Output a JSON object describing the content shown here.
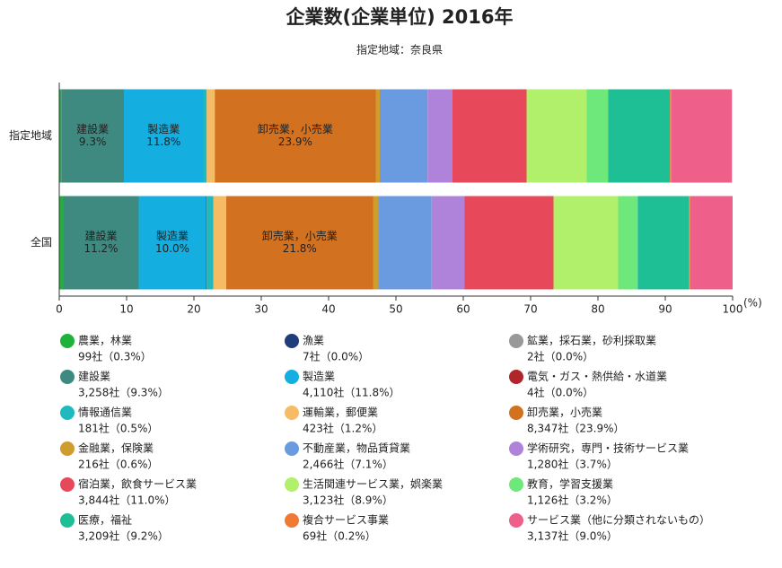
{
  "chart_data": {
    "type": "stacked_bar_horizontal",
    "title": "企業数(企業単位) 2016年",
    "subtitle": "指定地域：奈良県",
    "categories": [
      "指定地域",
      "全国"
    ],
    "xlim": [
      0,
      100
    ],
    "xticks": [
      0,
      10,
      20,
      30,
      40,
      50,
      60,
      70,
      80,
      90,
      100
    ],
    "x_unit": "(%)",
    "series": [
      {
        "name": "農業，林業",
        "color": "#1fb23a",
        "values": [
          0.3,
          0.6
        ],
        "legend_label": "99社（0.3%）"
      },
      {
        "name": "漁業",
        "color": "#1f3d7a",
        "values": [
          0.0,
          0.0
        ],
        "legend_label": "7社（0.0%）"
      },
      {
        "name": "鉱業，採石業，砂利採取業",
        "color": "#999999",
        "values": [
          0.0,
          0.0
        ],
        "legend_label": "2社（0.0%）"
      },
      {
        "name": "建設業",
        "color": "#3f8a80",
        "values": [
          9.3,
          11.2
        ],
        "value_labels": [
          "9.3%",
          "11.2%"
        ],
        "legend_label": "3,258社（9.3%）"
      },
      {
        "name": "製造業",
        "color": "#14aee0",
        "values": [
          11.8,
          10.0
        ],
        "value_labels": [
          "11.8%",
          "10.0%"
        ],
        "legend_label": "4,110社（11.8%）"
      },
      {
        "name": "電気・ガス・熱供給・水道業",
        "color": "#b0262a",
        "values": [
          0.0,
          0.1
        ],
        "legend_label": "4社（0.0%）"
      },
      {
        "name": "情報通信業",
        "color": "#1fbac0",
        "values": [
          0.5,
          1.0
        ],
        "legend_label": "181社（0.5%）"
      },
      {
        "name": "運輸業，郵便業",
        "color": "#f7bb66",
        "values": [
          1.2,
          1.9
        ],
        "legend_label": "423社（1.2%）"
      },
      {
        "name": "卸売業，小売業",
        "color": "#d2711f",
        "values": [
          23.9,
          21.8
        ],
        "value_labels": [
          "23.9%",
          "21.8%"
        ],
        "legend_label": "8,347社（23.9%）"
      },
      {
        "name": "金融業，保険業",
        "color": "#cf9c2e",
        "values": [
          0.6,
          0.8
        ],
        "legend_label": "216社（0.6%）"
      },
      {
        "name": "不動産業，物品賃貸業",
        "color": "#6a9be0",
        "values": [
          7.1,
          7.9
        ],
        "legend_label": "2,466社（7.1%）"
      },
      {
        "name": "学術研究，専門・技術サービス業",
        "color": "#b083db",
        "values": [
          3.7,
          4.9
        ],
        "legend_label": "1,280社（3.7%）"
      },
      {
        "name": "宿泊業，飲食サービス業",
        "color": "#e8495a",
        "values": [
          11.0,
          13.2
        ],
        "legend_label": "3,844社（11.0%）"
      },
      {
        "name": "生活関連サービス業，娯楽業",
        "color": "#b0f06a",
        "values": [
          8.9,
          9.6
        ],
        "legend_label": "3,123社（8.9%）"
      },
      {
        "name": "教育，学習支援業",
        "color": "#6ee87a",
        "values": [
          3.2,
          2.9
        ],
        "legend_label": "1,126社（3.2%）"
      },
      {
        "name": "医療，福祉",
        "color": "#1fbf95",
        "values": [
          9.2,
          7.6
        ],
        "legend_label": "3,209社（9.2%）"
      },
      {
        "name": "複合サービス事業",
        "color": "#f07a35",
        "values": [
          0.2,
          0.2
        ],
        "legend_label": "69社（0.2%）"
      },
      {
        "name": "サービス業（他に分類されないもの）",
        "color": "#ee5f8a",
        "values": [
          9.0,
          6.3
        ],
        "legend_label": "3,137社（9.0%）"
      }
    ]
  }
}
